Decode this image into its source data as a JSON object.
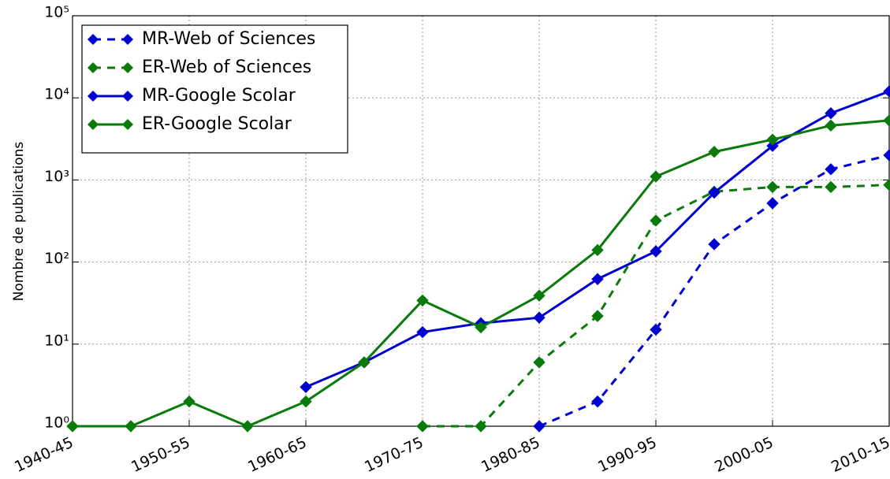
{
  "chart_data": {
    "type": "line",
    "ylabel": "Nombre de publications",
    "categories": [
      "1940-45",
      null,
      "1950-55",
      null,
      "1960-65",
      null,
      "1970-75",
      null,
      "1980-85",
      null,
      "1990-95",
      null,
      "2000-05",
      null,
      "2010-15"
    ],
    "series": [
      {
        "name": "MR-Web of Sciences",
        "color": "#0000d0",
        "linestyle": "dashed",
        "values": [
          null,
          null,
          null,
          null,
          null,
          null,
          null,
          null,
          1,
          2,
          15,
          165,
          520,
          1350,
          2000
        ]
      },
      {
        "name": "ER-Web of Sciences",
        "color": "#0a7a0a",
        "linestyle": "dashed",
        "values": [
          null,
          null,
          null,
          null,
          null,
          null,
          1,
          1,
          6,
          22,
          320,
          720,
          820,
          820,
          870
        ]
      },
      {
        "name": "MR-Google Scolar",
        "color": "#0000d0",
        "linestyle": "solid",
        "values": [
          null,
          null,
          null,
          null,
          3,
          6,
          14,
          18,
          21,
          62,
          135,
          700,
          2600,
          6500,
          12000
        ]
      },
      {
        "name": "ER-Google Scolar",
        "color": "#0a7a0a",
        "linestyle": "solid",
        "values": [
          1,
          1,
          2,
          1,
          2,
          6,
          34,
          16,
          39,
          140,
          1100,
          2200,
          3100,
          4600,
          5300
        ]
      }
    ],
    "ylim": [
      1,
      100000
    ],
    "log_y": true,
    "yticks": [
      {
        "value": 1,
        "label": "10⁰"
      },
      {
        "value": 10,
        "label": "10¹"
      },
      {
        "value": 100,
        "label": "10²"
      },
      {
        "value": 1000,
        "label": "10³"
      },
      {
        "value": 10000,
        "label": "10⁴"
      },
      {
        "value": 100000,
        "label": "10⁵"
      }
    ],
    "grid": true,
    "legend": "upper left"
  }
}
